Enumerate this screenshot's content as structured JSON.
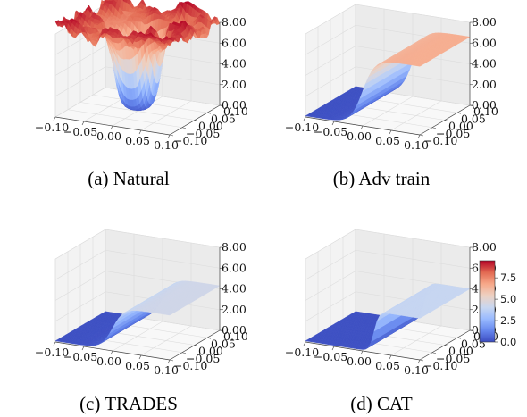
{
  "figure": {
    "colormap": "coolwarm",
    "colormap_stops": [
      "#3b4cc0",
      "#6788ee",
      "#9abbff",
      "#c9d7f0",
      "#edd1c2",
      "#f7a889",
      "#e26952",
      "#b40426"
    ]
  },
  "chart_data": [
    {
      "type": "surface",
      "caption": "(a) Natural",
      "x_ticks": [
        "−0.10",
        "−0.05",
        "0.00",
        "0.05",
        "0.10"
      ],
      "y_ticks": [
        "0.10",
        "0.05",
        "0.00",
        "−0.05",
        "−0.10"
      ],
      "z_ticks": [
        "0.00",
        "2.00",
        "4.00",
        "6.00",
        "8.00"
      ],
      "xlim": [
        -0.1,
        0.1
      ],
      "ylim": [
        -0.1,
        0.1
      ],
      "zlim": [
        0,
        8
      ],
      "surface": {
        "kind": "crater",
        "plateau": 8.3,
        "floor": 0.2,
        "radius": 0.04,
        "roughness": 1.2
      }
    },
    {
      "type": "surface",
      "caption": "(b) Adv train",
      "x_ticks": [
        "−0.10",
        "−0.05",
        "0.00",
        "0.05",
        "0.10"
      ],
      "y_ticks": [
        "0.10",
        "0.05",
        "0.00",
        "−0.05",
        "−0.10"
      ],
      "z_ticks": [
        "0.00",
        "2.00",
        "4.00",
        "6.00",
        "8.00"
      ],
      "xlim": [
        -0.1,
        0.1
      ],
      "ylim": [
        -0.1,
        0.1
      ],
      "zlim": [
        0,
        8
      ],
      "surface": {
        "kind": "step",
        "low": 0.1,
        "high": 6.6,
        "center": 0.0,
        "width": 0.03
      }
    },
    {
      "type": "surface",
      "caption": "(c) TRADES",
      "x_ticks": [
        "−0.10",
        "−0.05",
        "0.00",
        "0.05",
        "0.10"
      ],
      "y_ticks": [
        "0.10",
        "0.05",
        "0.00",
        "−0.05",
        "−0.10"
      ],
      "z_ticks": [
        "0.00",
        "2.00",
        "4.00",
        "6.00",
        "8.00"
      ],
      "xlim": [
        -0.1,
        0.1
      ],
      "ylim": [
        -0.1,
        0.1
      ],
      "zlim": [
        0,
        8
      ],
      "surface": {
        "kind": "step",
        "low": 0.1,
        "high": 4.3,
        "center": 0.0,
        "width": 0.028
      }
    },
    {
      "type": "surface",
      "caption": "(d) CAT",
      "x_ticks": [
        "−0.10",
        "−0.05",
        "0.00",
        "0.05",
        "0.10"
      ],
      "y_ticks": [
        "0.10",
        "0.05",
        "0.00",
        "−0.05",
        "−0.10"
      ],
      "z_ticks": [
        "0.00",
        "2.00",
        "4.00",
        "6.00",
        "8.00"
      ],
      "xlim": [
        -0.1,
        0.1
      ],
      "ylim": [
        -0.1,
        0.1
      ],
      "zlim": [
        0,
        8
      ],
      "surface": {
        "kind": "step",
        "low": 0.1,
        "high": 4.0,
        "center": 0.02,
        "width": 0.012
      }
    }
  ],
  "colorbar": {
    "ticks": [
      "7.5",
      "5.0",
      "2.5",
      "0.0"
    ],
    "tick_values": [
      7.5,
      5.0,
      2.5,
      0.0
    ],
    "range": [
      0,
      9.5
    ]
  }
}
